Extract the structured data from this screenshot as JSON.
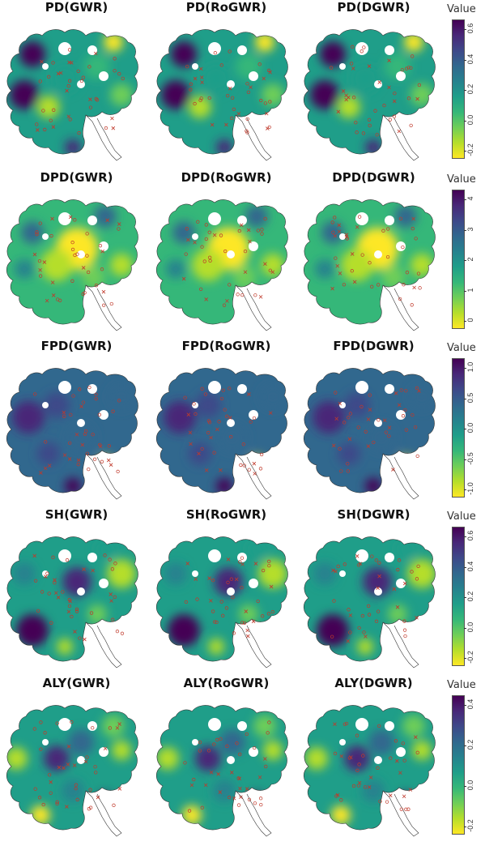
{
  "legend_title": "Value",
  "columns": [
    "GWR",
    "RoGWR",
    "DGWR"
  ],
  "rows": [
    {
      "id": "pd",
      "titles": [
        "PD(GWR)",
        "PD(RoGWR)",
        "PD(DGWR)"
      ],
      "legend_ticks": [
        "0.6",
        "0.4",
        "0.2",
        "0.0",
        "-0.2"
      ],
      "color_range": [
        -0.25,
        0.78
      ],
      "dominant": "teal-green with yellow patches"
    },
    {
      "id": "dpd",
      "titles": [
        "DPD(GWR)",
        "DPD(RoGWR)",
        "DPD(DGWR)"
      ],
      "legend_ticks": [
        "4",
        "3",
        "2",
        "1",
        "0"
      ],
      "color_range": [
        -0.5,
        4.9
      ],
      "dominant": "green with yellow center"
    },
    {
      "id": "fpd",
      "titles": [
        "FPD(GWR)",
        "FPD(RoGWR)",
        "FPD(DGWR)"
      ],
      "legend_ticks": [
        "1.0",
        "0.5",
        "0.0",
        "-0.5",
        "-1.0"
      ],
      "color_range": [
        -1.2,
        1.2
      ],
      "dominant": "blue-purple"
    },
    {
      "id": "sh",
      "titles": [
        "SH(GWR)",
        "SH(RoGWR)",
        "SH(DGWR)"
      ],
      "legend_ticks": [
        "0.6",
        "0.4",
        "0.2",
        "0.0",
        "-0.2"
      ],
      "color_range": [
        -0.35,
        0.78
      ],
      "dominant": "teal with purple"
    },
    {
      "id": "aly",
      "titles": [
        "ALY(GWR)",
        "ALY(RoGWR)",
        "ALY(DGWR)"
      ],
      "legend_ticks": [
        "0.4",
        "0.2",
        "0.0",
        "-0.2"
      ],
      "color_range": [
        -0.4,
        0.6
      ],
      "dominant": "teal-green with purple"
    }
  ],
  "palette": [
    "#fde725",
    "#b5de2b",
    "#6ece58",
    "#35b779",
    "#1f9e89",
    "#26828e",
    "#31688e",
    "#3e4989",
    "#482878",
    "#440154"
  ],
  "marker_color": "#c0392b",
  "outline_color": "#333333"
}
